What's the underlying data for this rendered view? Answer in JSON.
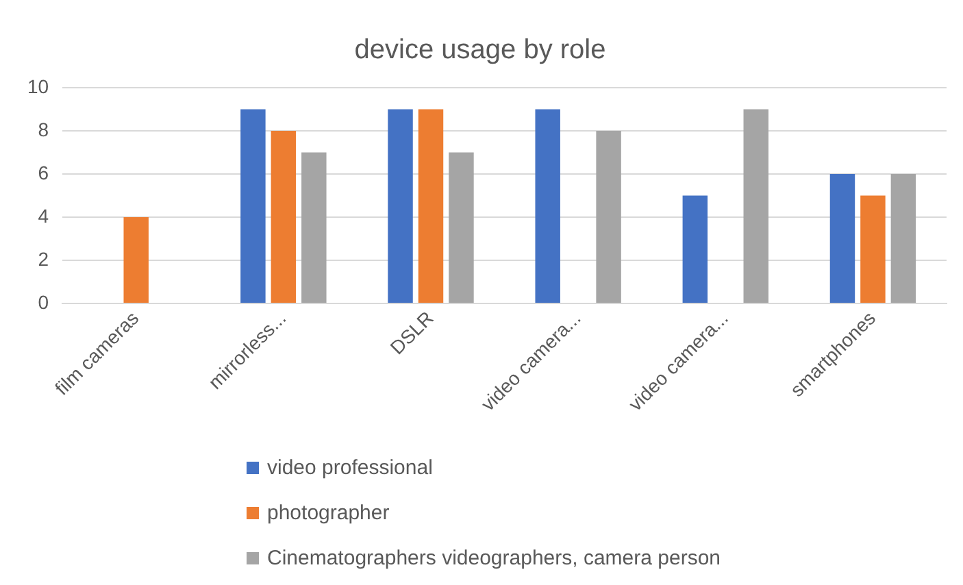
{
  "chart_data": {
    "type": "bar",
    "title": "device usage by role",
    "categories": [
      "film cameras",
      "mirrorless...",
      "DSLR",
      "video camera...",
      "video camera...",
      "smartphones"
    ],
    "series": [
      {
        "name": "video professional",
        "color": "#4472c4",
        "values": [
          null,
          9,
          9,
          9,
          5,
          6
        ]
      },
      {
        "name": "photographer",
        "color": "#ed7d31",
        "values": [
          4,
          8,
          9,
          null,
          null,
          5
        ]
      },
      {
        "name": "Cinematographers videographers, camera person",
        "color": "#a5a5a5",
        "values": [
          null,
          7,
          7,
          8,
          9,
          6
        ]
      }
    ],
    "ylim": [
      0,
      10
    ],
    "yticks": [
      0,
      2,
      4,
      6,
      8,
      10
    ],
    "grid": "y",
    "legend": "bottom"
  }
}
